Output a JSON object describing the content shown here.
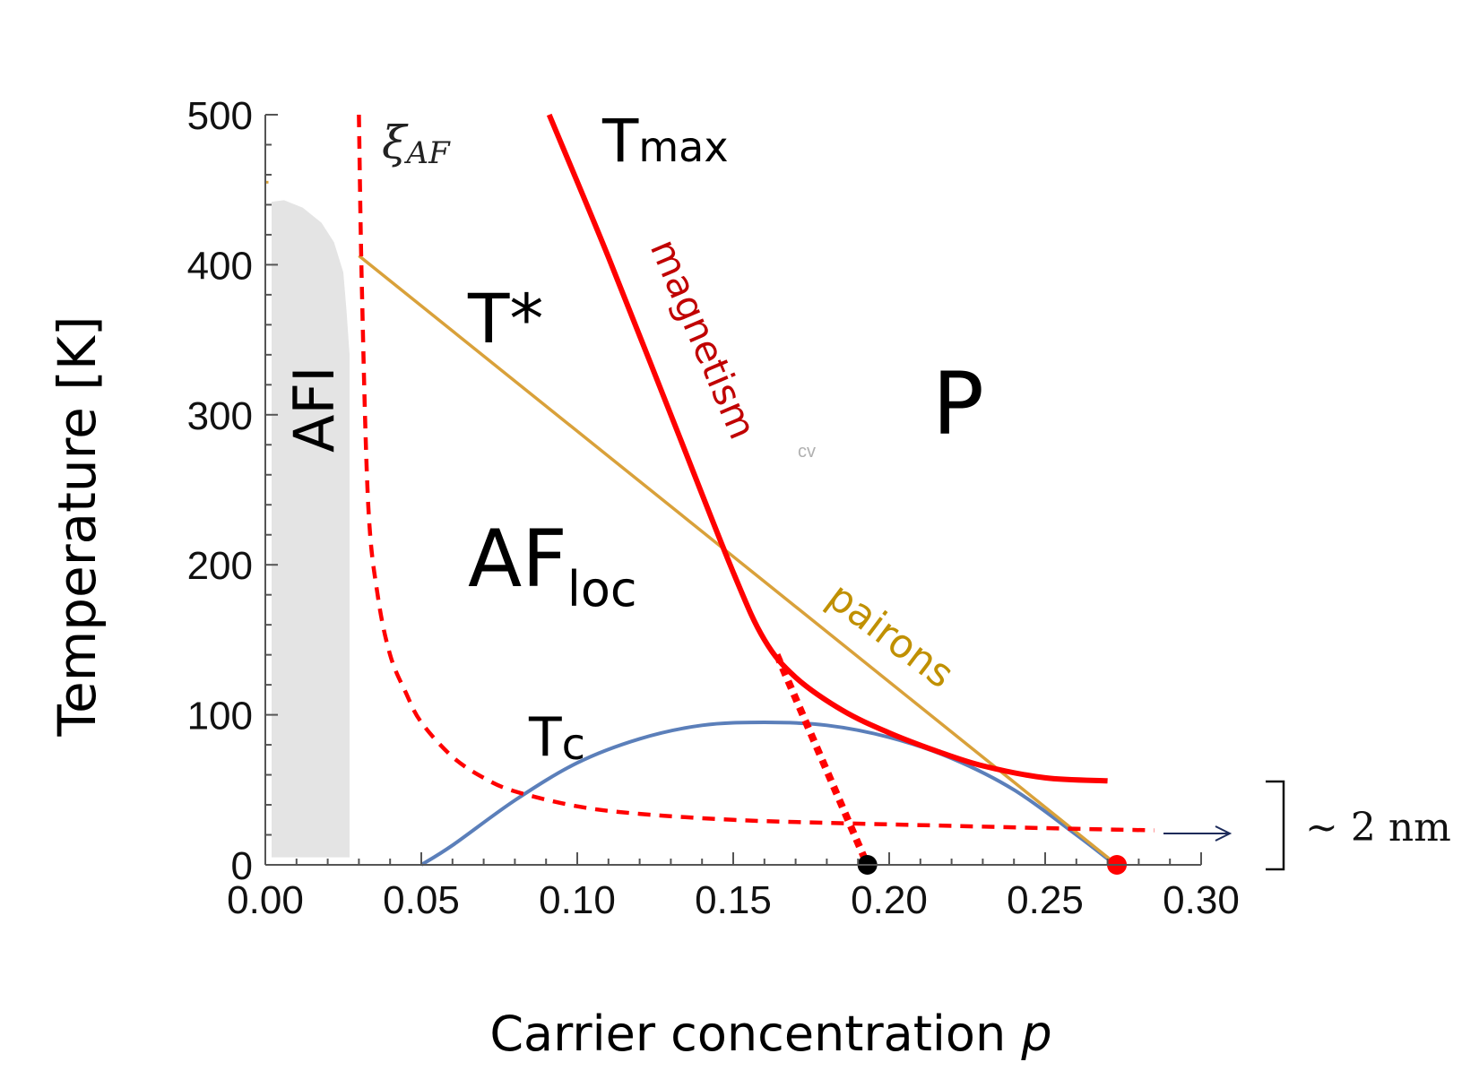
{
  "chart_data": {
    "type": "line",
    "xlabel": "Carrier concentration",
    "xlabel_var": "p",
    "ylabel": "Temperature [K]",
    "xlim": [
      0.0,
      0.3
    ],
    "ylim": [
      0,
      500
    ],
    "x_ticks": [
      "0.00",
      "0.05",
      "0.10",
      "0.15",
      "0.20",
      "0.25",
      "0.30"
    ],
    "y_ticks": [
      "0",
      "100",
      "200",
      "300",
      "400",
      "500"
    ],
    "grid": false,
    "colors": {
      "tmax": "#ff0000",
      "tstar": "#d9a13a",
      "tc": "#5b7fba",
      "afi": "#e4e4e4",
      "pairons_label": "#c09000",
      "magnetism_label": "#c00000",
      "end_point": "#ff0000",
      "critical_point": "#000000",
      "arrow": "#1c2a5a"
    },
    "series": [
      {
        "key": "tstar",
        "x": [
          0.03,
          0.273
        ],
        "y": [
          406,
          0
        ]
      },
      {
        "key": "tmax",
        "x": [
          0.091,
          0.11,
          0.13,
          0.15,
          0.16,
          0.17,
          0.185,
          0.2,
          0.215,
          0.23,
          0.25,
          0.27
        ],
        "y": [
          500,
          405,
          300,
          195,
          150,
          125,
          103,
          88,
          76,
          66,
          58,
          56
        ]
      },
      {
        "key": "tmax_dotted",
        "x": [
          0.164,
          0.193
        ],
        "y": [
          140,
          0
        ]
      },
      {
        "key": "xi_af",
        "x": [
          0.03,
          0.031,
          0.033,
          0.036,
          0.04,
          0.045,
          0.05,
          0.06,
          0.07,
          0.08,
          0.1,
          0.12,
          0.15,
          0.18,
          0.22,
          0.26,
          0.285
        ],
        "y": [
          500,
          380,
          240,
          180,
          140,
          115,
          95,
          72,
          58,
          49,
          39,
          34,
          30,
          28,
          26,
          24,
          23
        ]
      },
      {
        "key": "tc",
        "x": [
          0.05,
          0.06,
          0.08,
          0.1,
          0.12,
          0.14,
          0.16,
          0.18,
          0.2,
          0.22,
          0.24,
          0.26,
          0.27
        ],
        "y": [
          0,
          13,
          43,
          68,
          84,
          93,
          95,
          93,
          85,
          71,
          50,
          20,
          4
        ]
      },
      {
        "key": "afi",
        "x": [
          0.002,
          0.006,
          0.012,
          0.018,
          0.022,
          0.025,
          0.026,
          0.027,
          0.027,
          0.002
        ],
        "y": [
          442,
          443,
          438,
          428,
          415,
          395,
          370,
          340,
          5,
          5
        ]
      }
    ],
    "points": [
      {
        "key": "critical",
        "x": 0.193,
        "y": 0
      },
      {
        "key": "end",
        "x": 0.273,
        "y": 0
      }
    ],
    "labels": {
      "tmax_main": "T",
      "tmax_sub": "max",
      "tstar": "T*",
      "tc_main": "T",
      "tc_sub": "c",
      "af_main": "AF",
      "af_sub": "loc",
      "afi": "AFI",
      "p_region": "P",
      "magnetism": "magnetism",
      "pairons": "pairons",
      "xi_main": "ξ",
      "xi_sub": "AF",
      "cv": "cv",
      "length_scale": "~ 2 nm"
    }
  }
}
